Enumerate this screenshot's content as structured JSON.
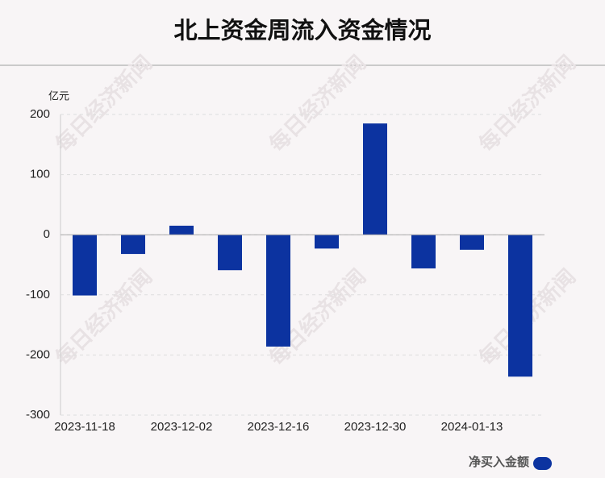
{
  "chart_data": {
    "type": "bar",
    "title": "北上资金周流入资金情况",
    "y_label": "亿元",
    "categories": [
      "2023-11-18",
      null,
      "2023-12-02",
      null,
      "2023-12-16",
      null,
      "2023-12-30",
      null,
      "2024-01-13",
      null
    ],
    "series": [
      {
        "name": "净买入金额",
        "color": "#0c33a0",
        "values": [
          -101,
          -32,
          15,
          -59,
          -186,
          -23,
          185,
          -56,
          -25,
          -236
        ]
      }
    ],
    "ylim": [
      -300,
      200
    ],
    "yticks": [
      -300,
      -200,
      -100,
      0,
      100,
      200
    ],
    "grid": true,
    "watermark": "每日经济新闻"
  }
}
